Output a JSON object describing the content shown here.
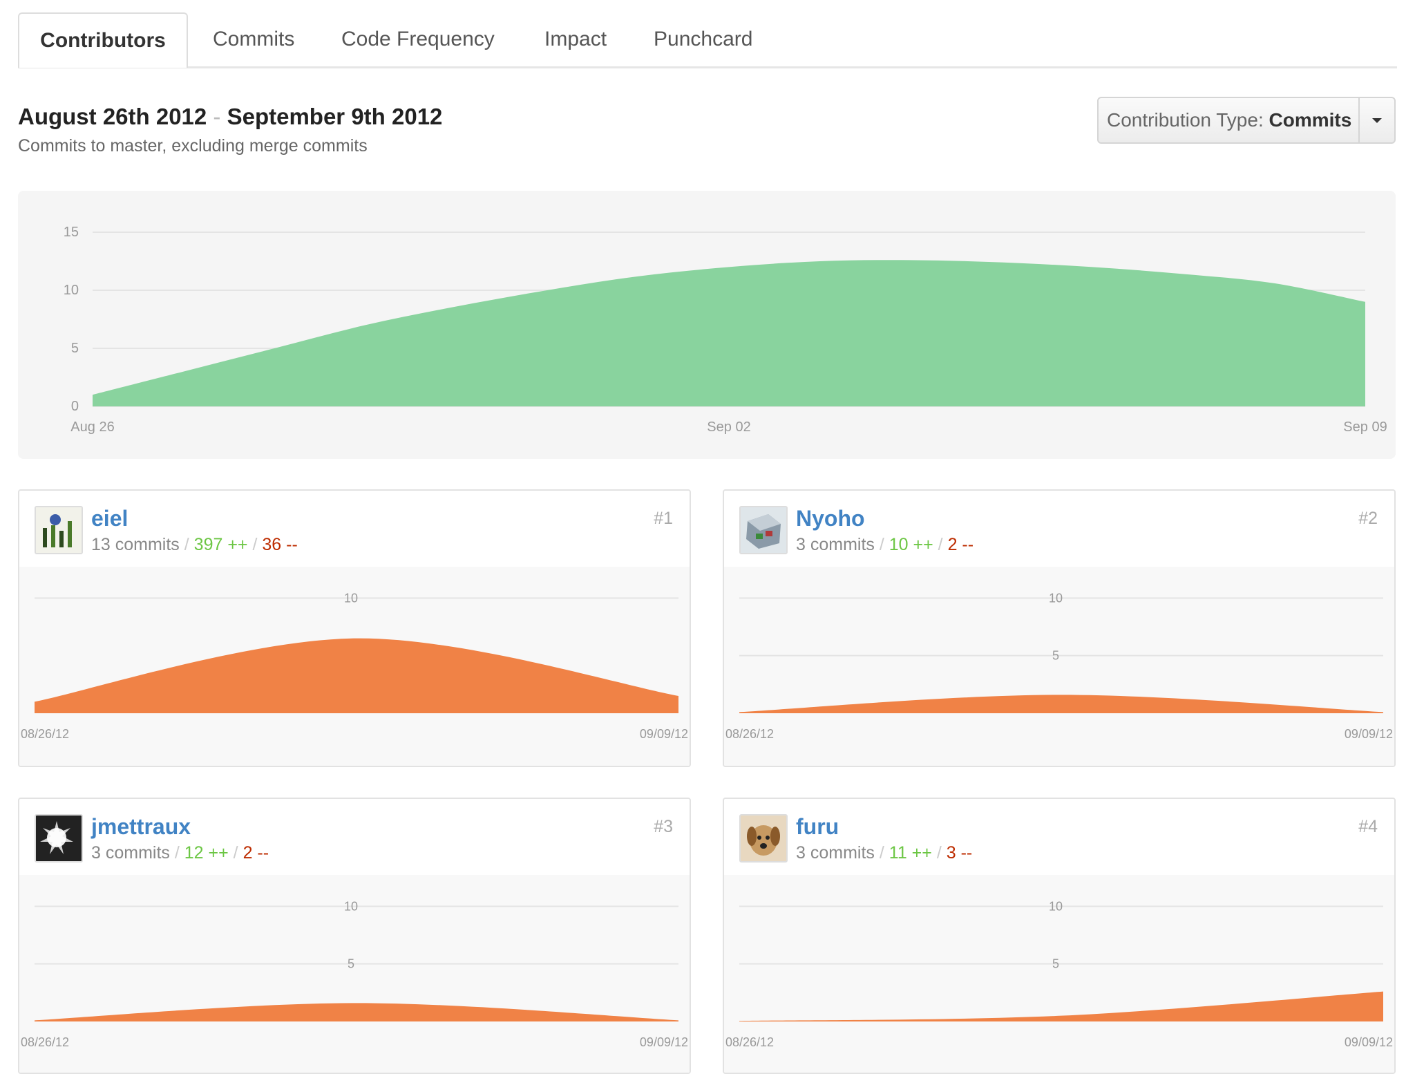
{
  "tabs": [
    {
      "label": "Contributors",
      "active": true
    },
    {
      "label": "Commits",
      "active": false
    },
    {
      "label": "Code Frequency",
      "active": false
    },
    {
      "label": "Impact",
      "active": false
    },
    {
      "label": "Punchcard",
      "active": false
    }
  ],
  "header": {
    "range_start": "August 26th 2012",
    "range_sep": "-",
    "range_end": "September 9th 2012",
    "subtitle": "Commits to master, excluding merge commits"
  },
  "contribution_type": {
    "label": "Contribution Type:",
    "value": "Commits",
    "icon": "caret-down-icon"
  },
  "colors": {
    "main_area": "#89d39e",
    "contributor_area": "#f08246",
    "link": "#4183c4",
    "additions": "#6cc644",
    "deletions": "#bd2c00"
  },
  "chart_data": [
    {
      "type": "area",
      "x": [
        "Aug 26",
        "Aug 27",
        "Aug 28",
        "Aug 29",
        "Aug 30",
        "Aug 31",
        "Sep 01",
        "Sep 02",
        "Sep 03",
        "Sep 04",
        "Sep 05",
        "Sep 06",
        "Sep 07",
        "Sep 08",
        "Sep 09"
      ],
      "values": [
        1,
        3,
        5,
        7,
        8.6,
        10,
        11.2,
        12,
        12.5,
        12.6,
        12.4,
        12,
        11.4,
        10.6,
        9
      ],
      "xticks": [
        "Aug 26",
        "Sep 02",
        "Sep 09"
      ],
      "yticks": [
        0,
        5,
        10,
        15
      ],
      "ylim": [
        0,
        15
      ],
      "grid": true
    },
    {
      "type": "area",
      "x": [
        "Aug 26",
        "Sep 02",
        "Sep 09"
      ],
      "values": [
        1,
        6.5,
        1.5
      ],
      "xticks": [
        "08/26/12",
        "09/09/12"
      ],
      "yticks": [
        10
      ],
      "ylim": [
        0,
        12
      ],
      "grid": true
    },
    {
      "type": "area",
      "x": [
        "Aug 26",
        "Sep 02",
        "Sep 09"
      ],
      "values": [
        0.1,
        1.6,
        0.1
      ],
      "xticks": [
        "08/26/12",
        "09/09/12"
      ],
      "yticks": [
        5,
        10
      ],
      "ylim": [
        0,
        12
      ],
      "grid": true
    },
    {
      "type": "area",
      "x": [
        "Aug 26",
        "Sep 02",
        "Sep 09"
      ],
      "values": [
        0.1,
        1.6,
        0.1
      ],
      "xticks": [
        "08/26/12",
        "09/09/12"
      ],
      "yticks": [
        5,
        10
      ],
      "ylim": [
        0,
        12
      ],
      "grid": true
    },
    {
      "type": "area",
      "x": [
        "Aug 26",
        "Sep 02",
        "Sep 09"
      ],
      "values": [
        0.05,
        0.5,
        2.6
      ],
      "xticks": [
        "08/26/12",
        "09/09/12"
      ],
      "yticks": [
        5,
        10
      ],
      "ylim": [
        0,
        12
      ],
      "grid": true
    }
  ],
  "contributors": [
    {
      "name": "eiel",
      "commits": "13 commits",
      "additions": "397 ++",
      "deletions": "36 --",
      "rank": "#1",
      "avatar_icon": "avatar-eiel"
    },
    {
      "name": "Nyoho",
      "commits": "3 commits",
      "additions": "10 ++",
      "deletions": "2 --",
      "rank": "#2",
      "avatar_icon": "avatar-nyoho"
    },
    {
      "name": "jmettraux",
      "commits": "3 commits",
      "additions": "12 ++",
      "deletions": "2 --",
      "rank": "#3",
      "avatar_icon": "avatar-jmettraux"
    },
    {
      "name": "furu",
      "commits": "3 commits",
      "additions": "11 ++",
      "deletions": "3 --",
      "rank": "#4",
      "avatar_icon": "avatar-furu"
    }
  ]
}
